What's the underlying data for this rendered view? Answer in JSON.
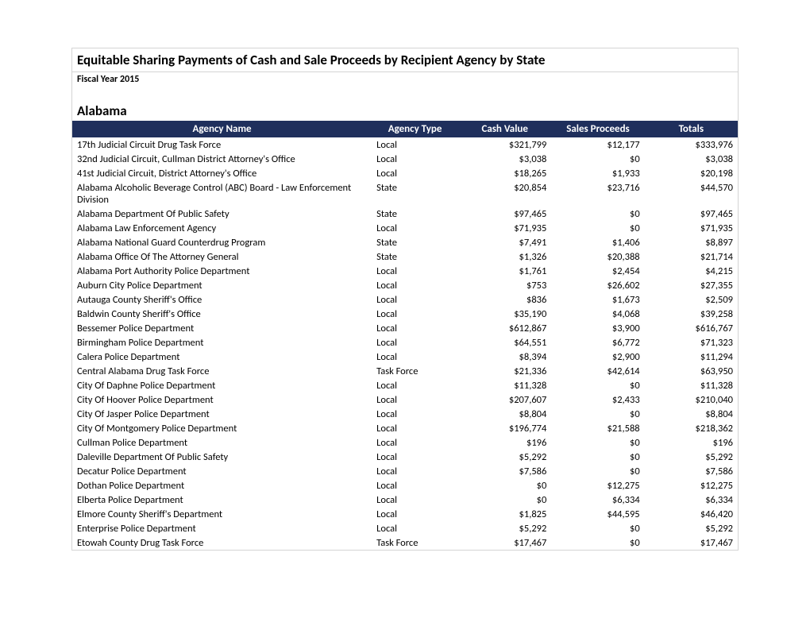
{
  "report": {
    "title": "Equitable Sharing Payments of Cash and Sale Proceeds by Recipient Agency by State",
    "subtitle": "Fiscal Year 2015",
    "state": "Alabama"
  },
  "table": {
    "header_bg": "#1f2f5c",
    "header_fg": "#ffffff",
    "columns": {
      "name": "Agency Name",
      "type": "Agency Type",
      "cash": "Cash Value",
      "sales": "Sales Proceeds",
      "total": "Totals"
    },
    "rows": [
      {
        "name": "17th Judicial Circuit Drug Task Force",
        "type": "Local",
        "cash": "$321,799",
        "sales": "$12,177",
        "total": "$333,976"
      },
      {
        "name": "32nd Judicial Circuit, Cullman District Attorney's Office",
        "type": "Local",
        "cash": "$3,038",
        "sales": "$0",
        "total": "$3,038"
      },
      {
        "name": "41st Judicial Circuit, District Attorney's Office",
        "type": "Local",
        "cash": "$18,265",
        "sales": "$1,933",
        "total": "$20,198"
      },
      {
        "name": "Alabama Alcoholic Beverage Control (ABC) Board - Law Enforcement Division",
        "type": "State",
        "cash": "$20,854",
        "sales": "$23,716",
        "total": "$44,570"
      },
      {
        "name": "Alabama Department Of Public Safety",
        "type": "State",
        "cash": "$97,465",
        "sales": "$0",
        "total": "$97,465"
      },
      {
        "name": "Alabama Law Enforcement Agency",
        "type": "Local",
        "cash": "$71,935",
        "sales": "$0",
        "total": "$71,935"
      },
      {
        "name": "Alabama National Guard Counterdrug Program",
        "type": "State",
        "cash": "$7,491",
        "sales": "$1,406",
        "total": "$8,897"
      },
      {
        "name": "Alabama Office Of The Attorney General",
        "type": "State",
        "cash": "$1,326",
        "sales": "$20,388",
        "total": "$21,714"
      },
      {
        "name": "Alabama Port Authority Police Department",
        "type": "Local",
        "cash": "$1,761",
        "sales": "$2,454",
        "total": "$4,215"
      },
      {
        "name": "Auburn City Police Department",
        "type": "Local",
        "cash": "$753",
        "sales": "$26,602",
        "total": "$27,355"
      },
      {
        "name": "Autauga County Sheriff's Office",
        "type": "Local",
        "cash": "$836",
        "sales": "$1,673",
        "total": "$2,509"
      },
      {
        "name": "Baldwin County Sheriff's Office",
        "type": "Local",
        "cash": "$35,190",
        "sales": "$4,068",
        "total": "$39,258"
      },
      {
        "name": "Bessemer Police Department",
        "type": "Local",
        "cash": "$612,867",
        "sales": "$3,900",
        "total": "$616,767"
      },
      {
        "name": "Birmingham Police Department",
        "type": "Local",
        "cash": "$64,551",
        "sales": "$6,772",
        "total": "$71,323"
      },
      {
        "name": "Calera Police Department",
        "type": "Local",
        "cash": "$8,394",
        "sales": "$2,900",
        "total": "$11,294"
      },
      {
        "name": "Central Alabama Drug Task Force",
        "type": "Task Force",
        "cash": "$21,336",
        "sales": "$42,614",
        "total": "$63,950"
      },
      {
        "name": "City Of Daphne Police Department",
        "type": "Local",
        "cash": "$11,328",
        "sales": "$0",
        "total": "$11,328"
      },
      {
        "name": "City Of Hoover Police Department",
        "type": "Local",
        "cash": "$207,607",
        "sales": "$2,433",
        "total": "$210,040"
      },
      {
        "name": "City Of Jasper Police Department",
        "type": "Local",
        "cash": "$8,804",
        "sales": "$0",
        "total": "$8,804"
      },
      {
        "name": "City Of Montgomery Police Department",
        "type": "Local",
        "cash": "$196,774",
        "sales": "$21,588",
        "total": "$218,362"
      },
      {
        "name": "Cullman Police Department",
        "type": "Local",
        "cash": "$196",
        "sales": "$0",
        "total": "$196"
      },
      {
        "name": "Daleville Department Of Public Safety",
        "type": "Local",
        "cash": "$5,292",
        "sales": "$0",
        "total": "$5,292"
      },
      {
        "name": "Decatur Police Department",
        "type": "Local",
        "cash": "$7,586",
        "sales": "$0",
        "total": "$7,586"
      },
      {
        "name": "Dothan Police Department",
        "type": "Local",
        "cash": "$0",
        "sales": "$12,275",
        "total": "$12,275"
      },
      {
        "name": "Elberta Police Department",
        "type": "Local",
        "cash": "$0",
        "sales": "$6,334",
        "total": "$6,334"
      },
      {
        "name": "Elmore County Sheriff's Department",
        "type": "Local",
        "cash": "$1,825",
        "sales": "$44,595",
        "total": "$46,420"
      },
      {
        "name": "Enterprise Police Department",
        "type": "Local",
        "cash": "$5,292",
        "sales": "$0",
        "total": "$5,292"
      },
      {
        "name": "Etowah County Drug Task Force",
        "type": "Task Force",
        "cash": "$17,467",
        "sales": "$0",
        "total": "$17,467"
      }
    ]
  }
}
